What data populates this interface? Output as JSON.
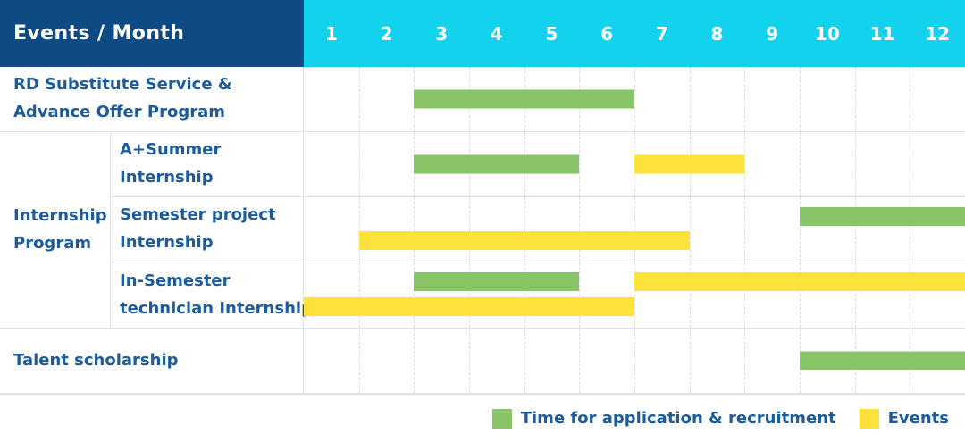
{
  "chart_data": {
    "type": "bar",
    "subtype": "gantt-schedule-table",
    "corner_label": "Events / Month",
    "months": [
      "1",
      "2",
      "3",
      "4",
      "5",
      "6",
      "7",
      "8",
      "9",
      "10",
      "11",
      "12"
    ],
    "x_range": [
      1,
      12
    ],
    "rows": [
      {
        "group": "",
        "label": "RD Substitute Service &\nAdvance Offer Program",
        "tracks": [
          {
            "pos": "center",
            "bars": [
              {
                "kind": "application",
                "color": "green",
                "start_month": 3,
                "end_month": 6
              }
            ]
          }
        ]
      },
      {
        "group": "Internship\nProgram",
        "group_span": 3,
        "label": "A+Summer\nInternship",
        "tracks": [
          {
            "pos": "center",
            "bars": [
              {
                "kind": "application",
                "color": "green",
                "start_month": 3,
                "end_month": 5
              },
              {
                "kind": "event",
                "color": "yellow",
                "start_month": 7,
                "end_month": 8
              }
            ]
          }
        ]
      },
      {
        "group": null,
        "label": "Semester project\nInternship",
        "tracks": [
          {
            "pos": "top",
            "bars": [
              {
                "kind": "application",
                "color": "green",
                "start_month": 10,
                "end_month": 12
              }
            ]
          },
          {
            "pos": "bottom",
            "bars": [
              {
                "kind": "event",
                "color": "yellow",
                "start_month": 2,
                "end_month": 7
              }
            ]
          }
        ]
      },
      {
        "group": null,
        "label": "In-Semester\ntechnician Internship",
        "tracks": [
          {
            "pos": "top",
            "bars": [
              {
                "kind": "application",
                "color": "green",
                "start_month": 3,
                "end_month": 5
              },
              {
                "kind": "event",
                "color": "yellow",
                "start_month": 7,
                "end_month": 12
              }
            ]
          },
          {
            "pos": "bottom",
            "bars": [
              {
                "kind": "event",
                "color": "yellow",
                "start_month": 1,
                "end_month": 6
              }
            ]
          }
        ]
      },
      {
        "group": "",
        "label": "Talent scholarship",
        "tracks": [
          {
            "pos": "center",
            "bars": [
              {
                "kind": "application",
                "color": "green",
                "start_month": 10,
                "end_month": 12
              }
            ]
          }
        ]
      }
    ],
    "legend": [
      {
        "color": "green",
        "label": "Time for application & recruitment"
      },
      {
        "color": "yellow",
        "label": "Events"
      }
    ]
  },
  "colors": {
    "header_navy": "#0e4b84",
    "header_cyan": "#12d2ee",
    "bar_green": "#87c567",
    "bar_yellow": "#fde23b",
    "text_blue": "#1d5c9c",
    "grid_line": "#e2e2e2",
    "month_dash": "#dcdcdc"
  }
}
